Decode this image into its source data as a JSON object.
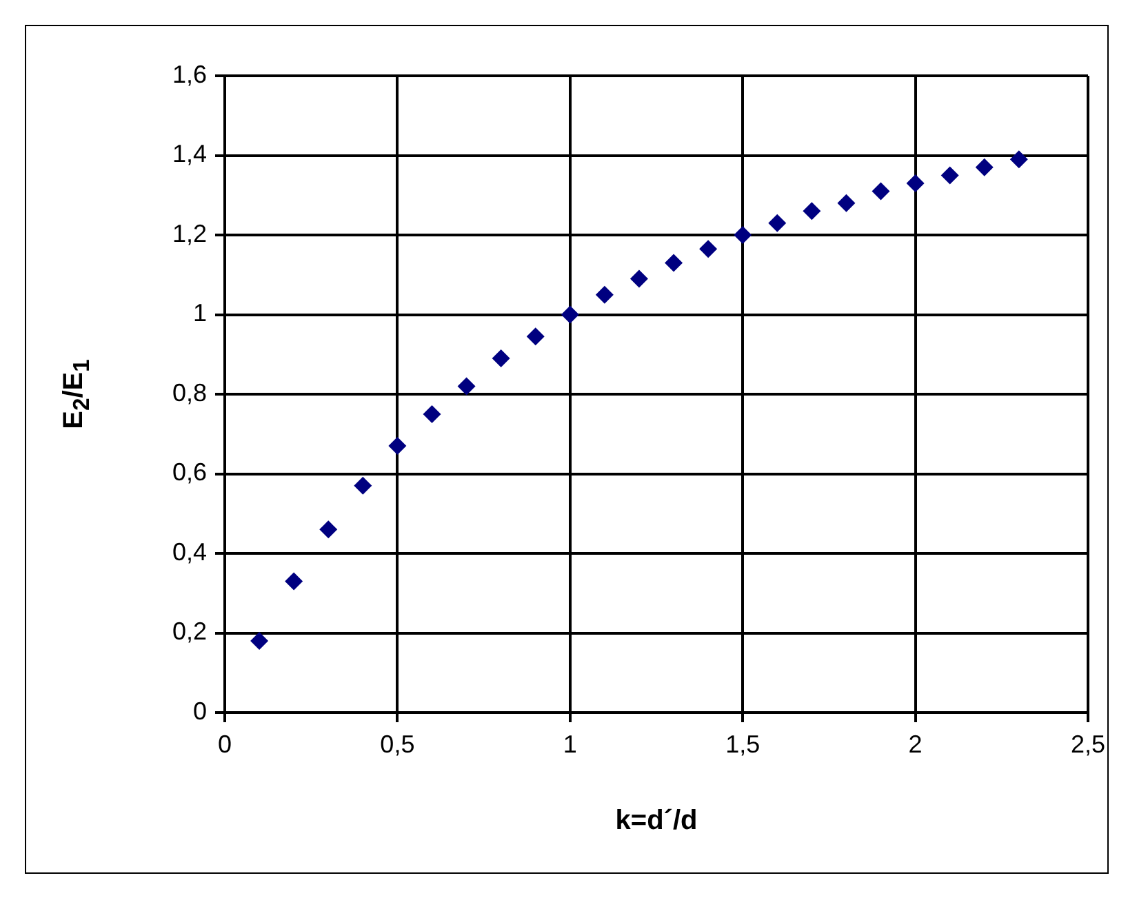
{
  "chart_data": {
    "type": "scatter",
    "xlabel": "k=d´/d",
    "ylabel": "E$_{2}$/E$_{1}$",
    "x": [
      0.1,
      0.2,
      0.3,
      0.4,
      0.5,
      0.6,
      0.7,
      0.8,
      0.9,
      1.0,
      1.1,
      1.2,
      1.3,
      1.4,
      1.5,
      1.6,
      1.7,
      1.8,
      1.9,
      2.0,
      2.1,
      2.2,
      2.3
    ],
    "series": [
      {
        "color": "#000080",
        "values": [
          0.18,
          0.33,
          0.46,
          0.57,
          0.67,
          0.75,
          0.82,
          0.89,
          0.945,
          1.0,
          1.05,
          1.09,
          1.13,
          1.165,
          1.2,
          1.23,
          1.26,
          1.28,
          1.31,
          1.33,
          1.35,
          1.37,
          1.39
        ]
      }
    ],
    "xlim": [
      0,
      2.5
    ],
    "ylim": [
      0,
      1.6
    ],
    "xticks": [
      0,
      {
        "value": 0.5,
        "label": "0,5"
      },
      1,
      {
        "value": 1.5,
        "label": "1,5"
      },
      2,
      {
        "value": 2.5,
        "label": "2,5"
      }
    ],
    "yticks": [
      0,
      {
        "value": 0.2,
        "label": "0,2"
      },
      {
        "value": 0.4,
        "label": "0,4"
      },
      {
        "value": 0.6,
        "label": "0,6"
      },
      {
        "value": 0.8,
        "label": "0,8"
      },
      1,
      {
        "value": 1.2,
        "label": "1,2"
      },
      {
        "value": 1.4,
        "label": "1,4"
      },
      {
        "value": 1.6,
        "label": "1,6"
      }
    ],
    "grid": true,
    "legend": false,
    "marker": "diamond"
  }
}
